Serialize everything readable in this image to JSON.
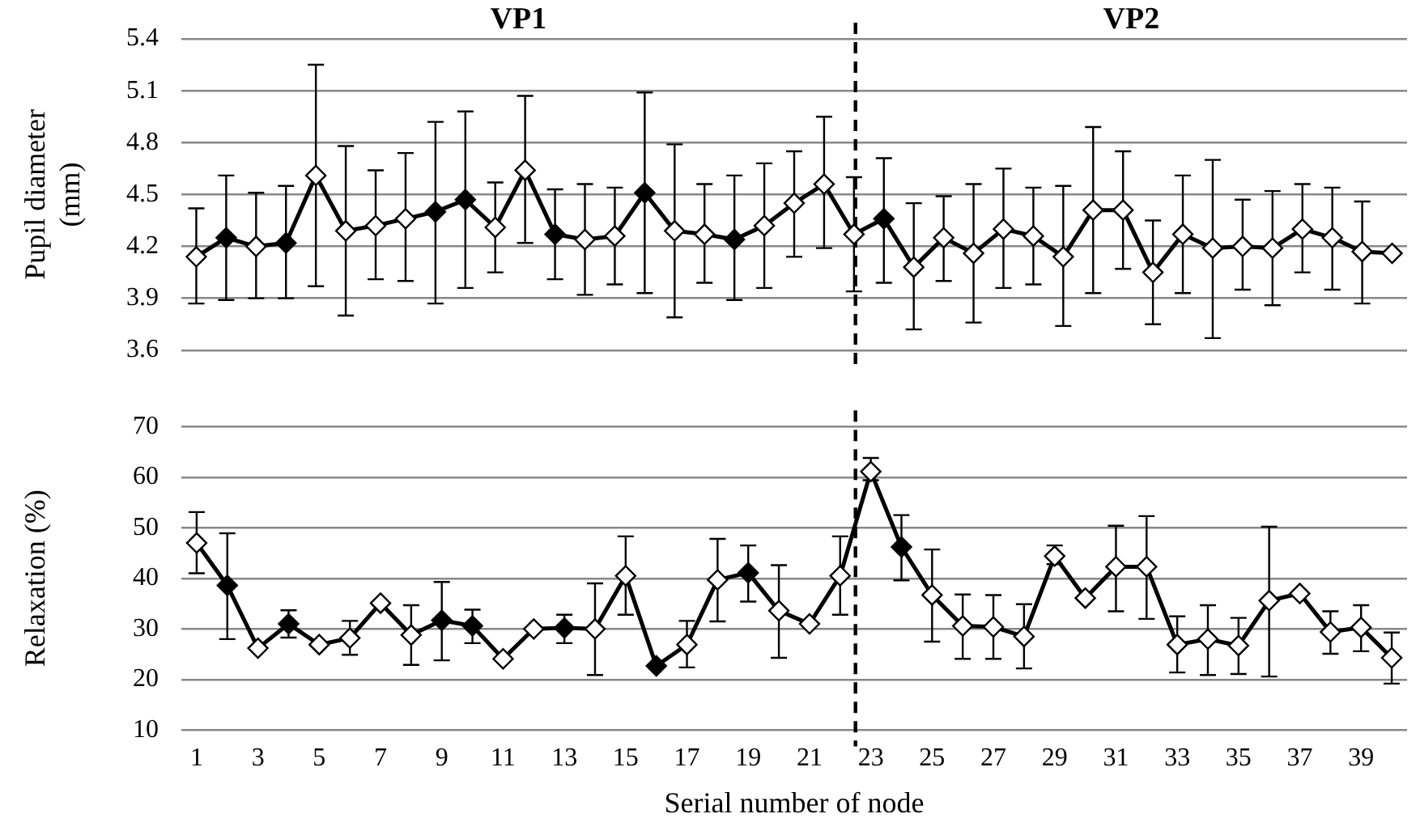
{
  "chart_data": [
    {
      "type": "line",
      "ylabel": "Pupil diameter (mm)",
      "annotations": [
        "VP1",
        "VP2"
      ],
      "categories": [
        null,
        null,
        null,
        null,
        null,
        null,
        null,
        null,
        null,
        null,
        null,
        null,
        null,
        null,
        null,
        null,
        null,
        null,
        null,
        null,
        null,
        null,
        null,
        null,
        null,
        null,
        null,
        null,
        null,
        null,
        null,
        null,
        null,
        null,
        null,
        null,
        null,
        null,
        null,
        null,
        null
      ],
      "series": [
        {
          "color": "#000000",
          "colors": [
            "#ffffff",
            "#000000",
            "#ffffff",
            "#000000",
            "#ffffff",
            "#ffffff",
            "#ffffff",
            "#ffffff",
            "#000000",
            "#000000",
            "#ffffff",
            "#ffffff",
            "#000000",
            "#ffffff",
            "#ffffff",
            "#000000",
            "#ffffff",
            "#ffffff",
            "#000000",
            "#ffffff",
            "#ffffff",
            "#ffffff",
            "#ffffff",
            "#000000",
            "#ffffff",
            "#ffffff",
            "#ffffff",
            "#ffffff",
            "#ffffff",
            "#ffffff",
            "#ffffff",
            "#ffffff",
            "#ffffff",
            "#ffffff",
            "#ffffff",
            "#ffffff",
            "#ffffff",
            "#ffffff",
            "#ffffff",
            "#ffffff",
            "#ffffff"
          ],
          "values": [
            4.14,
            4.25,
            4.2,
            4.22,
            4.61,
            4.29,
            4.32,
            4.36,
            4.4,
            4.47,
            4.31,
            4.64,
            4.27,
            4.24,
            4.26,
            4.51,
            4.29,
            4.27,
            4.24,
            4.32,
            4.45,
            4.56,
            4.27,
            4.36,
            4.08,
            4.25,
            4.16,
            4.3,
            4.26,
            4.14,
            4.41,
            4.41,
            4.05,
            4.27,
            4.19,
            4.2,
            4.19,
            4.3,
            4.25,
            4.17,
            4.16
          ],
          "errors": [
            [
              3.87,
              4.42
            ],
            [
              3.89,
              4.61
            ],
            [
              3.9,
              4.51
            ],
            [
              3.9,
              4.55
            ],
            [
              3.97,
              5.25
            ],
            [
              3.8,
              4.78
            ],
            [
              4.01,
              4.64
            ],
            [
              4.0,
              4.74
            ],
            [
              3.87,
              4.92
            ],
            [
              3.96,
              4.98
            ],
            [
              4.05,
              4.57
            ],
            [
              4.22,
              5.07
            ],
            [
              4.01,
              4.53
            ],
            [
              3.92,
              4.56
            ],
            [
              3.98,
              4.54
            ],
            [
              3.93,
              5.09
            ],
            [
              3.79,
              4.79
            ],
            [
              3.99,
              4.56
            ],
            [
              3.89,
              4.61
            ],
            [
              3.96,
              4.68
            ],
            [
              4.14,
              4.75
            ],
            [
              4.19,
              4.95
            ],
            [
              3.94,
              4.6
            ],
            [
              3.99,
              4.71
            ],
            [
              3.72,
              4.45
            ],
            [
              4.0,
              4.49
            ],
            [
              3.76,
              4.56
            ],
            [
              3.96,
              4.65
            ],
            [
              3.98,
              4.54
            ],
            [
              3.74,
              4.55
            ],
            [
              3.93,
              4.89
            ],
            [
              4.07,
              4.75
            ],
            [
              3.75,
              4.35
            ],
            [
              3.93,
              4.61
            ],
            [
              3.67,
              4.7
            ],
            [
              3.95,
              4.47
            ],
            [
              3.86,
              4.52
            ],
            [
              4.05,
              4.56
            ],
            [
              3.95,
              4.54
            ],
            [
              3.87,
              4.46
            ],
            null
          ]
        }
      ],
      "ylim": [
        3.6,
        5.4
      ],
      "yticks": [
        3.6,
        3.9,
        4.2,
        4.5,
        4.8,
        5.1,
        5.4
      ],
      "grid": "y",
      "legend": false,
      "marker": "diamond",
      "line_style": "solid",
      "tick_labels": "y"
    },
    {
      "type": "line",
      "xlabel": "Serial number of node",
      "ylabel": "Relaxation (%)",
      "x": [
        1,
        2,
        3,
        4,
        5,
        6,
        7,
        8,
        9,
        10,
        11,
        12,
        13,
        14,
        15,
        16,
        17,
        18,
        19,
        20,
        21,
        22,
        23,
        24,
        25,
        26,
        27,
        28,
        29,
        30,
        31,
        32,
        33,
        34,
        35,
        36,
        37,
        38,
        39,
        40
      ],
      "series": [
        {
          "color": "#000000",
          "colors": [
            "#ffffff",
            "#000000",
            "#ffffff",
            "#000000",
            "#ffffff",
            "#ffffff",
            "#ffffff",
            "#ffffff",
            "#000000",
            "#000000",
            "#ffffff",
            "#ffffff",
            "#000000",
            "#ffffff",
            "#ffffff",
            "#000000",
            "#ffffff",
            "#ffffff",
            "#000000",
            "#ffffff",
            "#ffffff",
            "#ffffff",
            "#ffffff",
            "#000000",
            "#ffffff",
            "#ffffff",
            "#ffffff",
            "#ffffff",
            "#ffffff",
            "#ffffff",
            "#ffffff",
            "#ffffff",
            "#ffffff",
            "#ffffff",
            "#ffffff",
            "#ffffff",
            "#ffffff",
            "#ffffff",
            "#ffffff",
            "#ffffff"
          ],
          "values": [
            47.0,
            38.6,
            26.2,
            31.0,
            26.9,
            28.2,
            35.1,
            28.8,
            31.7,
            30.6,
            24.1,
            30.0,
            30.2,
            30.0,
            40.5,
            22.7,
            26.9,
            39.7,
            41.1,
            33.6,
            31.0,
            40.5,
            61.1,
            46.2,
            36.7,
            30.6,
            30.4,
            28.5,
            44.4,
            36.1,
            42.3,
            42.3,
            26.9,
            28.0,
            26.7,
            35.6,
            37.0,
            29.4,
            30.3,
            24.3
          ],
          "errors": [
            [
              41.0,
              53.1
            ],
            [
              28.0,
              48.9
            ],
            null,
            [
              28.3,
              33.7
            ],
            null,
            [
              24.9,
              31.6
            ],
            null,
            [
              22.9,
              34.7
            ],
            [
              23.8,
              39.3
            ],
            [
              27.2,
              33.8
            ],
            null,
            null,
            [
              27.2,
              32.8
            ],
            [
              20.9,
              39.0
            ],
            [
              32.8,
              48.3
            ],
            null,
            [
              22.4,
              31.6
            ],
            [
              31.5,
              47.8
            ],
            [
              35.4,
              46.5
            ],
            [
              24.3,
              42.6
            ],
            null,
            [
              32.8,
              48.3
            ],
            [
              59.4,
              63.8
            ],
            [
              39.6,
              52.5
            ],
            [
              27.5,
              45.7
            ],
            [
              24.1,
              36.8
            ],
            [
              24.1,
              36.7
            ],
            [
              22.2,
              34.9
            ],
            [
              42.8,
              46.5
            ],
            null,
            [
              33.5,
              50.4
            ],
            [
              32.0,
              52.3
            ],
            [
              21.4,
              32.5
            ],
            [
              20.9,
              34.7
            ],
            [
              21.1,
              32.2
            ],
            [
              20.6,
              50.2
            ],
            null,
            [
              25.1,
              33.5
            ],
            [
              25.6,
              34.7
            ],
            [
              19.2,
              29.3
            ]
          ]
        }
      ],
      "xlim": [
        0.5,
        40.5
      ],
      "xticks": [
        1,
        3,
        5,
        7,
        9,
        11,
        13,
        15,
        17,
        19,
        21,
        23,
        25,
        27,
        29,
        31,
        33,
        35,
        37,
        39
      ],
      "ylim": [
        10,
        70
      ],
      "yticks": [
        10,
        20,
        30,
        40,
        50,
        60,
        70
      ],
      "ref_lines": [
        {
          "axis": "x",
          "value": 22.5,
          "line_style": "dashed",
          "color": "#000000"
        }
      ],
      "grid": "y",
      "legend": false,
      "marker": "diamond",
      "line_style": "solid"
    }
  ]
}
